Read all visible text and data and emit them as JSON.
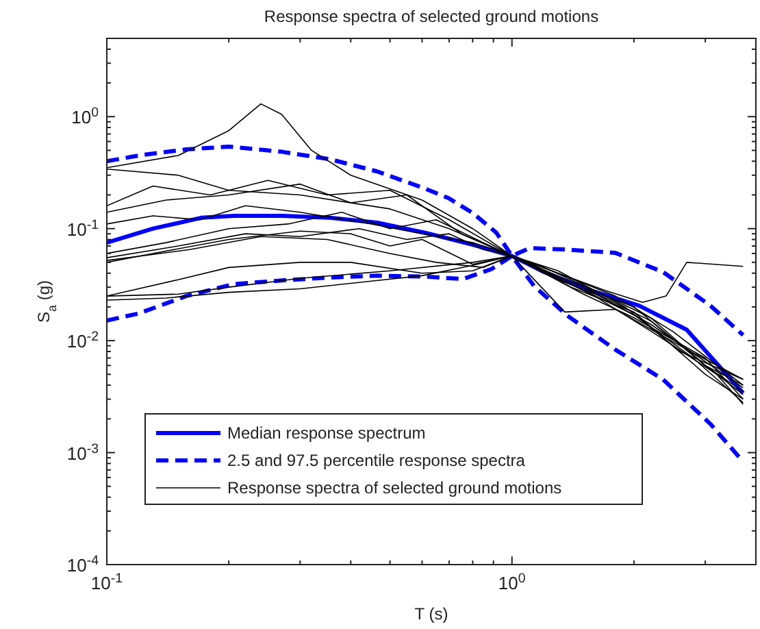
{
  "chart_data": {
    "type": "line",
    "title": "Response spectra of selected ground motions",
    "xlabel": "T (s)",
    "ylabel": "S$_{a}$ (g)",
    "log": "xy",
    "legend": "bottom left",
    "grid": false,
    "xlim": [
      0.1,
      4
    ],
    "ylim": [
      0.0001,
      5
    ],
    "xticks": [
      {
        "value": 0.1,
        "label": "10$^{-1}$"
      },
      {
        "value": 0.2,
        "label": null
      },
      {
        "value": 0.3,
        "label": null
      },
      {
        "value": 0.4,
        "label": null
      },
      {
        "value": 0.5,
        "label": null
      },
      {
        "value": 0.6,
        "label": null
      },
      {
        "value": 0.7,
        "label": null
      },
      {
        "value": 0.8,
        "label": null
      },
      {
        "value": 0.9,
        "label": null
      },
      {
        "value": 1,
        "label": "10$^{0}$"
      },
      {
        "value": 2,
        "label": null
      },
      {
        "value": 3,
        "label": null
      },
      {
        "value": 4,
        "label": null
      }
    ],
    "yticks": [
      {
        "value": 0.0001,
        "label": "10$^{-4}$"
      },
      {
        "value": 0.0002,
        "label": null
      },
      {
        "value": 0.0003,
        "label": null
      },
      {
        "value": 0.0004,
        "label": null
      },
      {
        "value": 0.0005,
        "label": null
      },
      {
        "value": 0.0006,
        "label": null
      },
      {
        "value": 0.0007,
        "label": null
      },
      {
        "value": 0.0008,
        "label": null
      },
      {
        "value": 0.0009,
        "label": null
      },
      {
        "value": 0.001,
        "label": "10$^{-3}$"
      },
      {
        "value": 0.002,
        "label": null
      },
      {
        "value": 0.003,
        "label": null
      },
      {
        "value": 0.004,
        "label": null
      },
      {
        "value": 0.005,
        "label": null
      },
      {
        "value": 0.006,
        "label": null
      },
      {
        "value": 0.007,
        "label": null
      },
      {
        "value": 0.008,
        "label": null
      },
      {
        "value": 0.009,
        "label": null
      },
      {
        "value": 0.01,
        "label": "10$^{-2}$"
      },
      {
        "value": 0.02,
        "label": null
      },
      {
        "value": 0.03,
        "label": null
      },
      {
        "value": 0.04,
        "label": null
      },
      {
        "value": 0.05,
        "label": null
      },
      {
        "value": 0.06,
        "label": null
      },
      {
        "value": 0.07,
        "label": null
      },
      {
        "value": 0.08,
        "label": null
      },
      {
        "value": 0.09,
        "label": null
      },
      {
        "value": 0.1,
        "label": "10$^{-1}$"
      },
      {
        "value": 0.2,
        "label": null
      },
      {
        "value": 0.3,
        "label": null
      },
      {
        "value": 0.4,
        "label": null
      },
      {
        "value": 0.5,
        "label": null
      },
      {
        "value": 0.6,
        "label": null
      },
      {
        "value": 0.7,
        "label": null
      },
      {
        "value": 0.8,
        "label": null
      },
      {
        "value": 0.9,
        "label": null
      },
      {
        "value": 1,
        "label": "10$^{0}$"
      },
      {
        "value": 2,
        "label": null
      },
      {
        "value": 3,
        "label": null
      },
      {
        "value": 4,
        "label": null
      },
      {
        "value": 5,
        "label": null
      }
    ],
    "series": [
      {
        "name": "Median response spectrum",
        "color": "#0000ff",
        "line_style": "solid",
        "x": [
          0.1,
          0.13,
          0.171,
          0.206,
          0.271,
          0.355,
          0.465,
          0.61,
          0.8,
          1,
          1.2,
          1.57,
          2.06,
          2.7,
          3.72
        ],
        "values": [
          0.075,
          0.1,
          0.125,
          0.13,
          0.13,
          0.125,
          0.113,
          0.092,
          0.072,
          0.057,
          0.041,
          0.028,
          0.0205,
          0.0125,
          0.0034
        ]
      },
      {
        "name": "2.5 and 97.5 percentile response spectra",
        "color": "#0000ff",
        "line_style": "dashed",
        "x": [
          0.1,
          0.12,
          0.157,
          0.2,
          0.271,
          0.355,
          0.465,
          0.61,
          0.698,
          0.8,
          0.915,
          1,
          1.105,
          1.37,
          1.8,
          2.36,
          3.09,
          3.72
        ],
        "values": [
          0.4,
          0.45,
          0.51,
          0.54,
          0.485,
          0.417,
          0.324,
          0.228,
          0.187,
          0.138,
          0.092,
          0.057,
          0.067,
          0.065,
          0.0607,
          0.041,
          0.0205,
          0.0112
        ]
      },
      {
        "color": "#0000ff",
        "line_style": "dashed",
        "x": [
          0.1,
          0.12,
          0.157,
          0.206,
          0.271,
          0.355,
          0.465,
          0.61,
          0.757,
          0.89,
          1,
          1.135,
          1.37,
          1.8,
          2.36,
          3.09,
          3.72
        ],
        "values": [
          0.0151,
          0.0175,
          0.025,
          0.032,
          0.0345,
          0.0366,
          0.038,
          0.0373,
          0.0355,
          0.0435,
          0.057,
          0.0306,
          0.0167,
          0.0083,
          0.0045,
          0.0018,
          0.00083
        ]
      },
      {
        "name": "Response spectra of selected ground motions",
        "color": "#000000",
        "line_style": "solid",
        "x": [
          0.1,
          0.15,
          0.2,
          0.24,
          0.27,
          0.32,
          0.4,
          0.6,
          0.8,
          1,
          1.5,
          2,
          3,
          3.72
        ],
        "values": [
          0.35,
          0.45,
          0.75,
          1.3,
          1.05,
          0.5,
          0.3,
          0.18,
          0.1,
          0.057,
          0.03,
          0.02,
          0.006,
          0.0033
        ]
      },
      {
        "color": "#000000",
        "line_style": "solid",
        "x": [
          0.1,
          0.15,
          0.2,
          0.3,
          0.5,
          0.7,
          1,
          1.4,
          2,
          3,
          3.72
        ],
        "values": [
          0.34,
          0.3,
          0.22,
          0.2,
          0.15,
          0.1,
          0.057,
          0.03,
          0.018,
          0.005,
          0.003
        ]
      },
      {
        "color": "#000000",
        "line_style": "solid",
        "x": [
          0.1,
          0.13,
          0.18,
          0.25,
          0.35,
          0.5,
          0.7,
          1,
          1.3,
          1.7,
          2.1,
          2.4,
          2.7,
          3.72
        ],
        "values": [
          0.16,
          0.24,
          0.2,
          0.27,
          0.2,
          0.22,
          0.12,
          0.057,
          0.04,
          0.028,
          0.022,
          0.025,
          0.05,
          0.046
        ]
      },
      {
        "color": "#000000",
        "line_style": "solid",
        "x": [
          0.1,
          0.14,
          0.2,
          0.3,
          0.4,
          0.55,
          0.75,
          1,
          1.3,
          1.8,
          2.5,
          3.72
        ],
        "values": [
          0.14,
          0.18,
          0.2,
          0.25,
          0.17,
          0.2,
          0.09,
          0.057,
          0.04,
          0.025,
          0.012,
          0.004
        ]
      },
      {
        "color": "#000000",
        "line_style": "solid",
        "x": [
          0.1,
          0.13,
          0.17,
          0.22,
          0.3,
          0.45,
          0.6,
          0.8,
          1,
          1.3,
          1.7,
          2.2,
          3,
          3.72
        ],
        "values": [
          0.11,
          0.13,
          0.12,
          0.16,
          0.14,
          0.11,
          0.09,
          0.075,
          0.057,
          0.035,
          0.024,
          0.015,
          0.006,
          0.0035
        ]
      },
      {
        "color": "#000000",
        "line_style": "solid",
        "x": [
          0.1,
          0.14,
          0.2,
          0.28,
          0.38,
          0.5,
          0.65,
          0.85,
          1,
          1.4,
          2,
          2.8,
          3.72
        ],
        "values": [
          0.06,
          0.075,
          0.1,
          0.11,
          0.14,
          0.1,
          0.12,
          0.075,
          0.057,
          0.032,
          0.017,
          0.007,
          0.0028
        ]
      },
      {
        "color": "#000000",
        "line_style": "solid",
        "x": [
          0.1,
          0.15,
          0.22,
          0.3,
          0.42,
          0.55,
          0.7,
          0.85,
          1,
          1.3,
          1.9,
          2.6,
          3.72
        ],
        "values": [
          0.055,
          0.07,
          0.09,
          0.085,
          0.1,
          0.08,
          0.09,
          0.065,
          0.057,
          0.042,
          0.02,
          0.008,
          0.0045
        ]
      },
      {
        "color": "#000000",
        "line_style": "solid",
        "x": [
          0.1,
          0.13,
          0.2,
          0.3,
          0.4,
          0.5,
          0.6,
          0.8,
          1,
          1.2,
          1.6,
          2.2,
          3,
          3.72
        ],
        "values": [
          0.05,
          0.06,
          0.08,
          0.095,
          0.09,
          0.07,
          0.08,
          0.048,
          0.057,
          0.045,
          0.028,
          0.016,
          0.006,
          0.004
        ]
      },
      {
        "color": "#000000",
        "line_style": "solid",
        "x": [
          0.1,
          0.16,
          0.24,
          0.35,
          0.5,
          0.65,
          0.85,
          1,
          1.5,
          2,
          3,
          3.72
        ],
        "values": [
          0.052,
          0.065,
          0.085,
          0.08,
          0.06,
          0.05,
          0.045,
          0.057,
          0.026,
          0.016,
          0.007,
          0.003
        ]
      },
      {
        "color": "#000000",
        "line_style": "solid",
        "x": [
          0.1,
          0.15,
          0.2,
          0.3,
          0.4,
          0.6,
          0.8,
          1,
          1.35,
          1.8,
          2.6,
          3.72
        ],
        "values": [
          0.025,
          0.035,
          0.045,
          0.05,
          0.05,
          0.04,
          0.042,
          0.057,
          0.018,
          0.019,
          0.009,
          0.0045
        ]
      },
      {
        "color": "#000000",
        "line_style": "solid",
        "x": [
          0.1,
          0.15,
          0.2,
          0.3,
          0.5,
          0.8,
          1,
          1.5,
          2.2,
          3,
          3.72
        ],
        "values": [
          0.025,
          0.026,
          0.03,
          0.036,
          0.042,
          0.05,
          0.057,
          0.03,
          0.014,
          0.0065,
          0.0038
        ]
      },
      {
        "color": "#000000",
        "line_style": "solid",
        "x": [
          0.1,
          0.14,
          0.2,
          0.3,
          0.45,
          0.6,
          0.8,
          1,
          1.6,
          2.3,
          3.2,
          3.72
        ],
        "values": [
          0.023,
          0.024,
          0.027,
          0.029,
          0.034,
          0.038,
          0.047,
          0.057,
          0.025,
          0.011,
          0.005,
          0.0027
        ]
      }
    ]
  }
}
